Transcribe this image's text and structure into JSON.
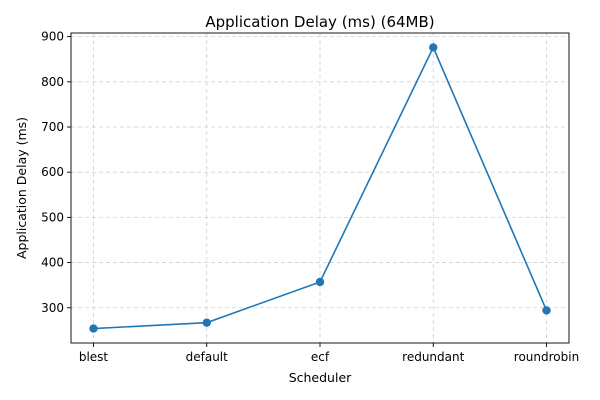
{
  "chart_data": {
    "type": "line",
    "title": "Application Delay (ms) (64MB)",
    "xlabel": "Scheduler",
    "ylabel": "Application Delay (ms)",
    "categories": [
      "blest",
      "default",
      "ecf",
      "redundant",
      "roundrobin"
    ],
    "series": [
      {
        "values": [
          254,
          267,
          357,
          876,
          294
        ],
        "color": "#1f77b4",
        "marker": "circle"
      }
    ],
    "ylim": [
      222,
      908
    ],
    "yticks": [
      300,
      400,
      500,
      600,
      700,
      800,
      900
    ],
    "grid": true
  }
}
